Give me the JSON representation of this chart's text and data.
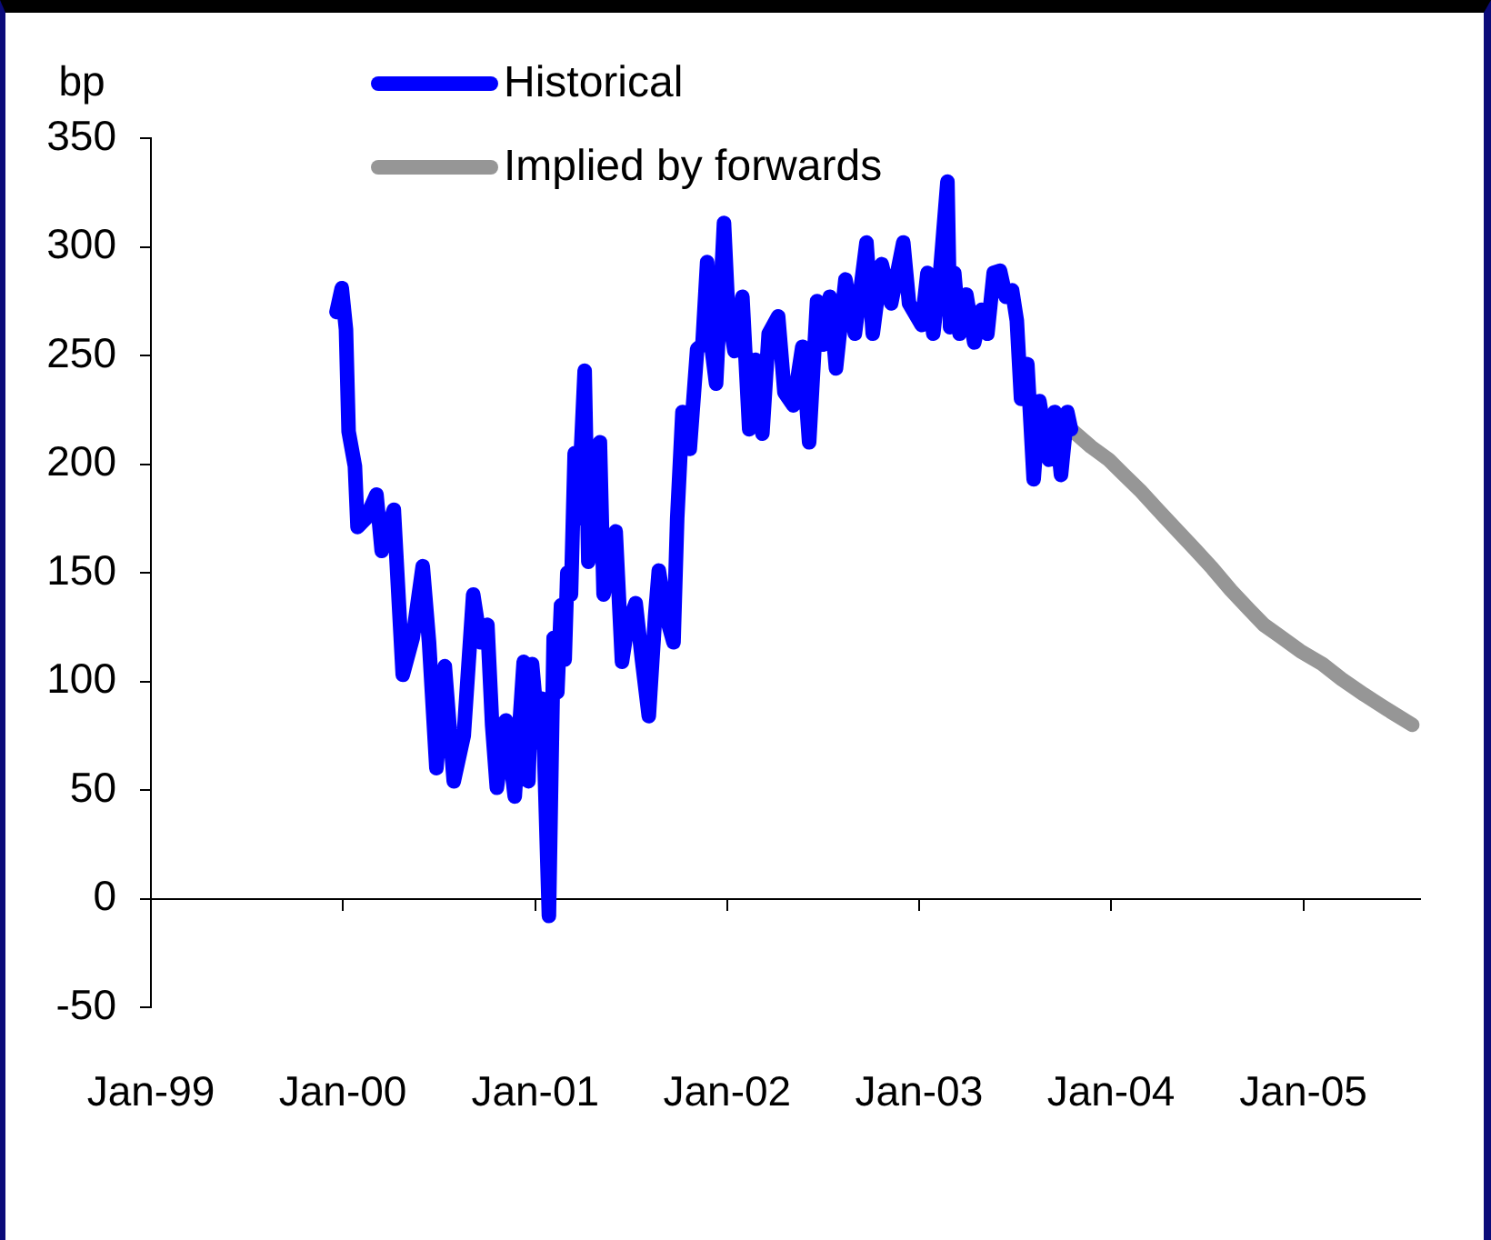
{
  "chart_data": {
    "type": "line",
    "ylabel": "bp",
    "legend": "top",
    "xlim": [
      "1999-01-01",
      "2005-08-11"
    ],
    "xticks": [
      {
        "value": "1999-01",
        "label": "Jan-99"
      },
      {
        "value": "2000-01",
        "label": "Jan-00"
      },
      {
        "value": "2001-01",
        "label": "Jan-01"
      },
      {
        "value": "2002-01",
        "label": "Jan-02"
      },
      {
        "value": "2003-01",
        "label": "Jan-03"
      },
      {
        "value": "2004-01",
        "label": "Jan-04"
      },
      {
        "value": "2005-01",
        "label": "Jan-05"
      }
    ],
    "ylim": [
      -50,
      350
    ],
    "yticks": [
      -50,
      0,
      50,
      100,
      150,
      200,
      250,
      300,
      350
    ],
    "series": [
      {
        "name": "Historical",
        "color": "#0000ff",
        "x": [
          "1999-12-20",
          "1999-12-30",
          "2000-01-07",
          "2000-01-12",
          "2000-01-24",
          "2000-01-29",
          "2000-02-14",
          "2000-03-05",
          "2000-03-15",
          "2000-04-07",
          "2000-04-24",
          "2000-05-13",
          "2000-06-01",
          "2000-06-13",
          "2000-06-27",
          "2000-07-13",
          "2000-07-30",
          "2000-08-18",
          "2000-09-05",
          "2000-09-19",
          "2000-10-02",
          "2000-10-11",
          "2000-10-20",
          "2000-11-06",
          "2000-11-23",
          "2000-12-10",
          "2000-12-19",
          "2000-12-26",
          "2001-01-08",
          "2001-01-15",
          "2001-01-27",
          "2001-02-05",
          "2001-02-12",
          "2001-02-19",
          "2001-02-26",
          "2001-03-03",
          "2001-03-10",
          "2001-03-17",
          "2001-03-23",
          "2001-04-05",
          "2001-04-12",
          "2001-04-24",
          "2001-05-04",
          "2001-05-11",
          "2001-06-03",
          "2001-06-15",
          "2001-06-25",
          "2001-07-11",
          "2001-07-23",
          "2001-08-05",
          "2001-08-17",
          "2001-08-24",
          "2001-09-07",
          "2001-09-21",
          "2001-09-28",
          "2001-10-08",
          "2001-10-22",
          "2001-11-05",
          "2001-11-15",
          "2001-11-24",
          "2001-11-29",
          "2001-12-11",
          "2001-12-26",
          "2002-01-03",
          "2002-01-15",
          "2002-01-30",
          "2002-02-12",
          "2002-02-24",
          "2002-03-09",
          "2002-03-21",
          "2002-04-08",
          "2002-04-20",
          "2002-05-07",
          "2002-05-24",
          "2002-06-06",
          "2002-06-21",
          "2002-07-03",
          "2002-07-15",
          "2002-07-27",
          "2002-08-14",
          "2002-09-01",
          "2002-09-23",
          "2002-10-05",
          "2002-10-22",
          "2002-11-09",
          "2002-12-02",
          "2002-12-13",
          "2003-01-06",
          "2003-01-17",
          "2003-01-28",
          "2003-02-10",
          "2003-02-24",
          "2003-03-01",
          "2003-03-09",
          "2003-03-19",
          "2003-04-01",
          "2003-04-16",
          "2003-04-30",
          "2003-05-11",
          "2003-05-23",
          "2003-06-04",
          "2003-06-15",
          "2003-06-27",
          "2003-07-06",
          "2003-07-14",
          "2003-07-26",
          "2003-08-07",
          "2003-08-18",
          "2003-09-05",
          "2003-09-16",
          "2003-09-28",
          "2003-10-10",
          "2003-10-17"
        ],
        "values": [
          270,
          281,
          262,
          215,
          199,
          171,
          175,
          186,
          160,
          179,
          103,
          120,
          153,
          118,
          60,
          107,
          54,
          75,
          140,
          118,
          126,
          80,
          51,
          82,
          47,
          109,
          54,
          108,
          72,
          92,
          -8,
          120,
          95,
          135,
          110,
          150,
          140,
          205,
          175,
          243,
          155,
          200,
          210,
          140,
          169,
          109,
          125,
          136,
          110,
          84,
          130,
          151,
          130,
          118,
          175,
          224,
          207,
          253,
          255,
          293,
          260,
          237,
          311,
          270,
          252,
          277,
          216,
          248,
          214,
          260,
          268,
          233,
          227,
          254,
          210,
          275,
          255,
          277,
          244,
          285,
          260,
          302,
          260,
          292,
          274,
          302,
          274,
          264,
          288,
          260,
          288,
          330,
          263,
          288,
          260,
          278,
          256,
          271,
          260,
          288,
          289,
          277,
          280,
          266,
          230,
          246,
          193,
          229,
          202,
          224,
          195,
          224,
          216
        ]
      },
      {
        "name": "Implied by forwards",
        "color": "#969696",
        "x": [
          "2003-10-17",
          "2003-11-24",
          "2003-12-28",
          "2004-01-26",
          "2004-02-25",
          "2004-03-30",
          "2004-05-04",
          "2004-06-08",
          "2004-07-12",
          "2004-08-16",
          "2004-09-20",
          "2004-10-18",
          "2004-11-16",
          "2004-12-26",
          "2005-02-06",
          "2005-03-15",
          "2005-04-26",
          "2005-06-10",
          "2005-07-27"
        ],
        "values": [
          216,
          208,
          202,
          195,
          188,
          179,
          170,
          161,
          152,
          142,
          133,
          126,
          121,
          114,
          108,
          101,
          94,
          87,
          80
        ]
      }
    ]
  }
}
